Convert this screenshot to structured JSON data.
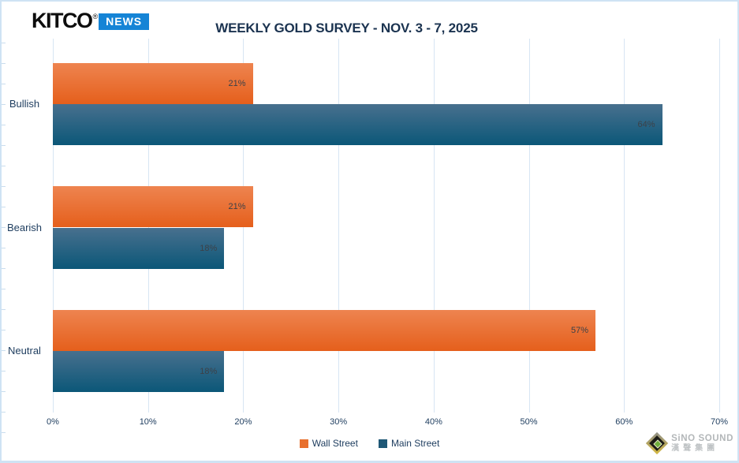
{
  "header": {
    "logo": {
      "brand": "KITCO",
      "registered_mark": "®",
      "news_label": "NEWS",
      "news_bg_color": "#1584d6"
    },
    "title": "WEEKLY GOLD SURVEY - NOV. 3 - 7, 2025"
  },
  "chart_data": {
    "type": "bar",
    "orientation": "horizontal",
    "title": "WEEKLY GOLD SURVEY - NOV. 3 - 7, 2025",
    "categories": [
      "Bullish",
      "Bearish",
      "Neutral"
    ],
    "series": [
      {
        "name": "Wall Street",
        "values": [
          21,
          21,
          57
        ],
        "labels": [
          "21%",
          "21%",
          "57%"
        ],
        "color_top": "#ee8450",
        "color_bottom": "#e55f1c",
        "legend_color": "#e8702e"
      },
      {
        "name": "Main Street",
        "values": [
          64,
          18,
          18
        ],
        "labels": [
          "64%",
          "18%",
          "18%"
        ],
        "color_top": "#48708e",
        "color_bottom": "#0b5778",
        "legend_color": "#1f5876"
      }
    ],
    "x_ticks": [
      "0%",
      "10%",
      "20%",
      "30%",
      "40%",
      "50%",
      "60%",
      "70%"
    ],
    "xlim": [
      0,
      70
    ],
    "xlabel": "",
    "ylabel": "",
    "grid": "vertical",
    "gridline_color": "#d7e5f3",
    "legend_position": "bottom-center",
    "value_label_color": "#3c4148"
  },
  "watermark": {
    "line1": "SiNO SOUND",
    "line2": "漢聲集團",
    "icon": "sino-sound-diamond-logo"
  },
  "colors": {
    "frame_border": "#cfe3f4",
    "title_text": "#1b3350",
    "axis_text": "#1d3c5e",
    "background": "#ffffff"
  }
}
